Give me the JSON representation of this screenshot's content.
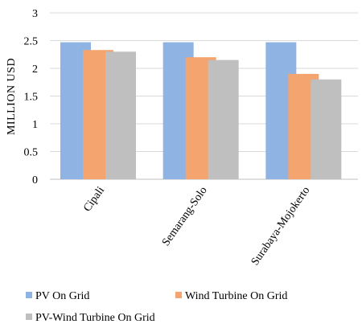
{
  "chart_data": {
    "type": "bar",
    "title": "",
    "xlabel": "",
    "ylabel": "MILLION USD",
    "ylim": [
      0,
      3
    ],
    "yticks": [
      "0",
      "0.5",
      "1",
      "1.5",
      "2",
      "2.5",
      "3"
    ],
    "categories": [
      "Cipali",
      "Semarang-Solo",
      "Surabaya-Mojokerto"
    ],
    "series": [
      {
        "name": "PV On Grid",
        "color": "#8fb4e3",
        "values": [
          2.47,
          2.47,
          2.47
        ]
      },
      {
        "name": "Wind Turbine On Grid",
        "color": "#f4a46e",
        "values": [
          2.33,
          2.2,
          1.9
        ]
      },
      {
        "name": "PV-Wind Turbine On Grid",
        "color": "#bfbfbf",
        "values": [
          2.3,
          2.15,
          1.8
        ]
      }
    ],
    "grid": true,
    "legend_position": "bottom"
  }
}
